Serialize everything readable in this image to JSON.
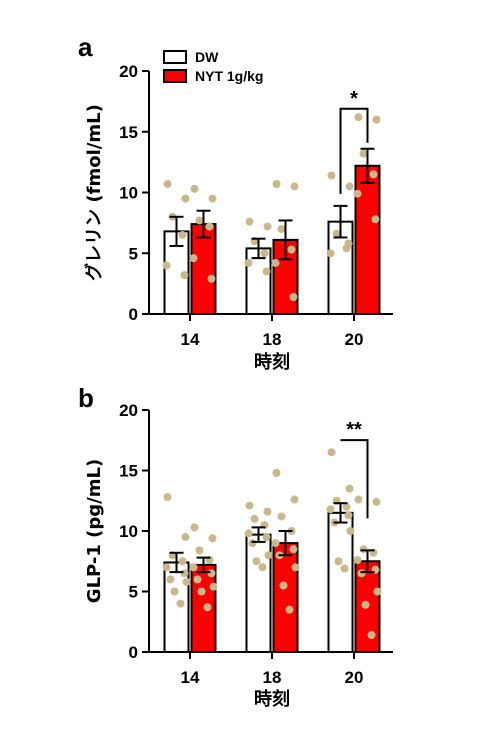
{
  "colors": {
    "dw": "#ffffff",
    "nyt": "#ff0000",
    "dots": "#c8b88a",
    "axis": "#000000"
  },
  "legend": {
    "dw_label": "DW",
    "nyt_label": "NYT 1g/kg",
    "placement": "top-left"
  },
  "chart_data": [
    {
      "panel": "a",
      "type": "bar",
      "categories": [
        "14",
        "18",
        "20"
      ],
      "xlabel": "時刻",
      "ylabel": "グレリン (fmol/mL)",
      "ylim": [
        0,
        20
      ],
      "yticks": [
        "0",
        "5",
        "10",
        "15",
        "20"
      ],
      "grid": false,
      "series": [
        {
          "name": "DW",
          "values": [
            6.8,
            5.4,
            7.6
          ],
          "sem": [
            1.2,
            0.8,
            1.3
          ],
          "points": [
            [
              10.7,
              9.5,
              8.0,
              6.5,
              4.0,
              3.2
            ],
            [
              7.6,
              7.2,
              6.0,
              5.0,
              4.2,
              3.5
            ],
            [
              11.4,
              10.5,
              6.6,
              5.4,
              5.0,
              5.8
            ]
          ]
        },
        {
          "name": "NYT 1g/kg",
          "values": [
            7.4,
            6.1,
            12.2
          ],
          "sem": [
            1.1,
            1.6,
            1.4
          ],
          "points": [
            [
              10.3,
              9.5,
              7.7,
              7.2,
              4.6,
              2.9
            ],
            [
              10.7,
              10.5,
              7.0,
              5.3,
              4.2,
              1.4
            ],
            [
              16.2,
              16.0,
              13.2,
              11.5,
              9.9,
              7.8
            ]
          ]
        }
      ],
      "annotations": [
        {
          "category": "20",
          "text": "*"
        }
      ]
    },
    {
      "panel": "b",
      "type": "bar",
      "categories": [
        "14",
        "18",
        "20"
      ],
      "xlabel": "時刻",
      "ylabel": "GLP-1 (pg/mL)",
      "ylim": [
        0,
        20
      ],
      "yticks": [
        "0",
        "5",
        "10",
        "15",
        "20"
      ],
      "grid": false,
      "series": [
        {
          "name": "DW",
          "values": [
            7.4,
            9.7,
            11.5
          ],
          "sem": [
            0.8,
            0.6,
            0.8
          ],
          "points": [
            [
              12.8,
              9.5,
              8.0,
              7.5,
              7.0,
              6.5,
              6.0,
              5.8,
              5.0,
              4.0
            ],
            [
              12.1,
              11.6,
              11.0,
              10.5,
              9.8,
              9.5,
              9.0,
              8.0,
              7.5,
              7.0
            ],
            [
              16.5,
              13.5,
              12.5,
              12.0,
              11.8,
              11.3,
              10.7,
              10.0,
              7.5,
              6.9
            ]
          ]
        },
        {
          "name": "NYT 1g/kg",
          "values": [
            7.2,
            9.0,
            7.5
          ],
          "sem": [
            0.6,
            1.0,
            0.9
          ],
          "points": [
            [
              10.3,
              9.4,
              8.4,
              7.6,
              7.0,
              6.5,
              6.0,
              5.4,
              5.0,
              3.7
            ],
            [
              14.8,
              12.6,
              11.2,
              10.0,
              9.0,
              8.5,
              8.0,
              7.0,
              5.5,
              3.5
            ],
            [
              12.6,
              12.4,
              8.5,
              8.2,
              7.6,
              6.8,
              6.5,
              5.0,
              3.9,
              1.4
            ]
          ]
        }
      ],
      "annotations": [
        {
          "category": "20",
          "text": "**"
        }
      ]
    }
  ]
}
